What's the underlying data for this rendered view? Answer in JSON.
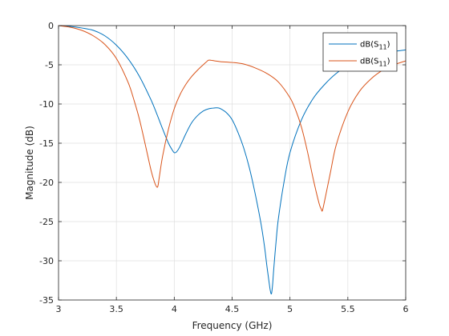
{
  "chart_data": {
    "type": "line",
    "xlabel": "Frequency (GHz)",
    "ylabel": "Magnitude (dB)",
    "xlim": [
      3,
      6
    ],
    "ylim": [
      -35,
      0
    ],
    "xticks": [
      3,
      3.5,
      4,
      4.5,
      5,
      5.5,
      6
    ],
    "xtick_labels": [
      "3",
      "3.5",
      "4",
      "4.5",
      "5",
      "5.5",
      "6"
    ],
    "yticks": [
      0,
      -5,
      -10,
      -15,
      -20,
      -25,
      -30,
      -35
    ],
    "ytick_labels": [
      "0",
      "-5",
      "-10",
      "-15",
      "-20",
      "-25",
      "-30",
      "-35"
    ],
    "grid": true,
    "legend_position": "top-right",
    "series": [
      {
        "name": "dB(S11)",
        "name_base": "dB(S",
        "name_sub": "11",
        "name_tail": ")",
        "color": "#0072bd",
        "x": [
          3.0,
          3.1,
          3.2,
          3.3,
          3.4,
          3.5,
          3.6,
          3.7,
          3.8,
          3.85,
          3.9,
          3.95,
          3.98,
          4.0,
          4.02,
          4.05,
          4.1,
          4.15,
          4.2,
          4.25,
          4.3,
          4.35,
          4.38,
          4.4,
          4.45,
          4.5,
          4.55,
          4.6,
          4.65,
          4.7,
          4.75,
          4.78,
          4.8,
          4.82,
          4.83,
          4.84,
          4.85,
          4.86,
          4.88,
          4.9,
          4.95,
          5.0,
          5.1,
          5.2,
          5.3,
          5.4,
          5.5,
          5.6,
          5.7,
          5.8,
          5.9,
          6.0
        ],
        "y": [
          0,
          -0.1,
          -0.3,
          -0.6,
          -1.3,
          -2.5,
          -4.2,
          -6.5,
          -9.5,
          -11.3,
          -13.2,
          -15.0,
          -15.8,
          -16.2,
          -16.1,
          -15.4,
          -13.8,
          -12.4,
          -11.5,
          -10.9,
          -10.6,
          -10.5,
          -10.5,
          -10.6,
          -11.1,
          -12.0,
          -13.6,
          -15.6,
          -18.2,
          -21.5,
          -25.3,
          -28.2,
          -30.6,
          -32.8,
          -33.8,
          -34.2,
          -33.0,
          -31.0,
          -27.5,
          -24.6,
          -19.8,
          -16.2,
          -12.0,
          -9.3,
          -7.5,
          -6.1,
          -5.1,
          -4.4,
          -3.9,
          -3.6,
          -3.3,
          -3.1
        ]
      },
      {
        "name": "dB(S11)",
        "name_base": "dB(S",
        "name_sub": "11",
        "name_tail": ")",
        "color": "#d95319",
        "x": [
          3.0,
          3.1,
          3.2,
          3.3,
          3.4,
          3.5,
          3.6,
          3.65,
          3.7,
          3.75,
          3.8,
          3.83,
          3.85,
          3.86,
          3.87,
          3.9,
          3.95,
          4.0,
          4.05,
          4.1,
          4.15,
          4.2,
          4.25,
          4.28,
          4.3,
          4.35,
          4.4,
          4.5,
          4.6,
          4.7,
          4.8,
          4.9,
          5.0,
          5.05,
          5.1,
          5.15,
          5.2,
          5.25,
          5.27,
          5.28,
          5.3,
          5.35,
          5.4,
          5.5,
          5.6,
          5.7,
          5.8,
          5.9,
          6.0
        ],
        "y": [
          0,
          -0.2,
          -0.6,
          -1.3,
          -2.4,
          -4.2,
          -7.2,
          -9.4,
          -12.0,
          -15.2,
          -18.5,
          -20.0,
          -20.6,
          -20.4,
          -19.4,
          -16.6,
          -13.2,
          -10.6,
          -8.8,
          -7.5,
          -6.5,
          -5.7,
          -5.0,
          -4.6,
          -4.4,
          -4.5,
          -4.6,
          -4.7,
          -4.9,
          -5.4,
          -6.1,
          -7.2,
          -9.2,
          -10.8,
          -13.0,
          -16.0,
          -19.5,
          -22.6,
          -23.4,
          -23.6,
          -22.3,
          -18.7,
          -15.2,
          -11.0,
          -8.4,
          -6.8,
          -5.7,
          -5.0,
          -4.5
        ]
      }
    ]
  }
}
